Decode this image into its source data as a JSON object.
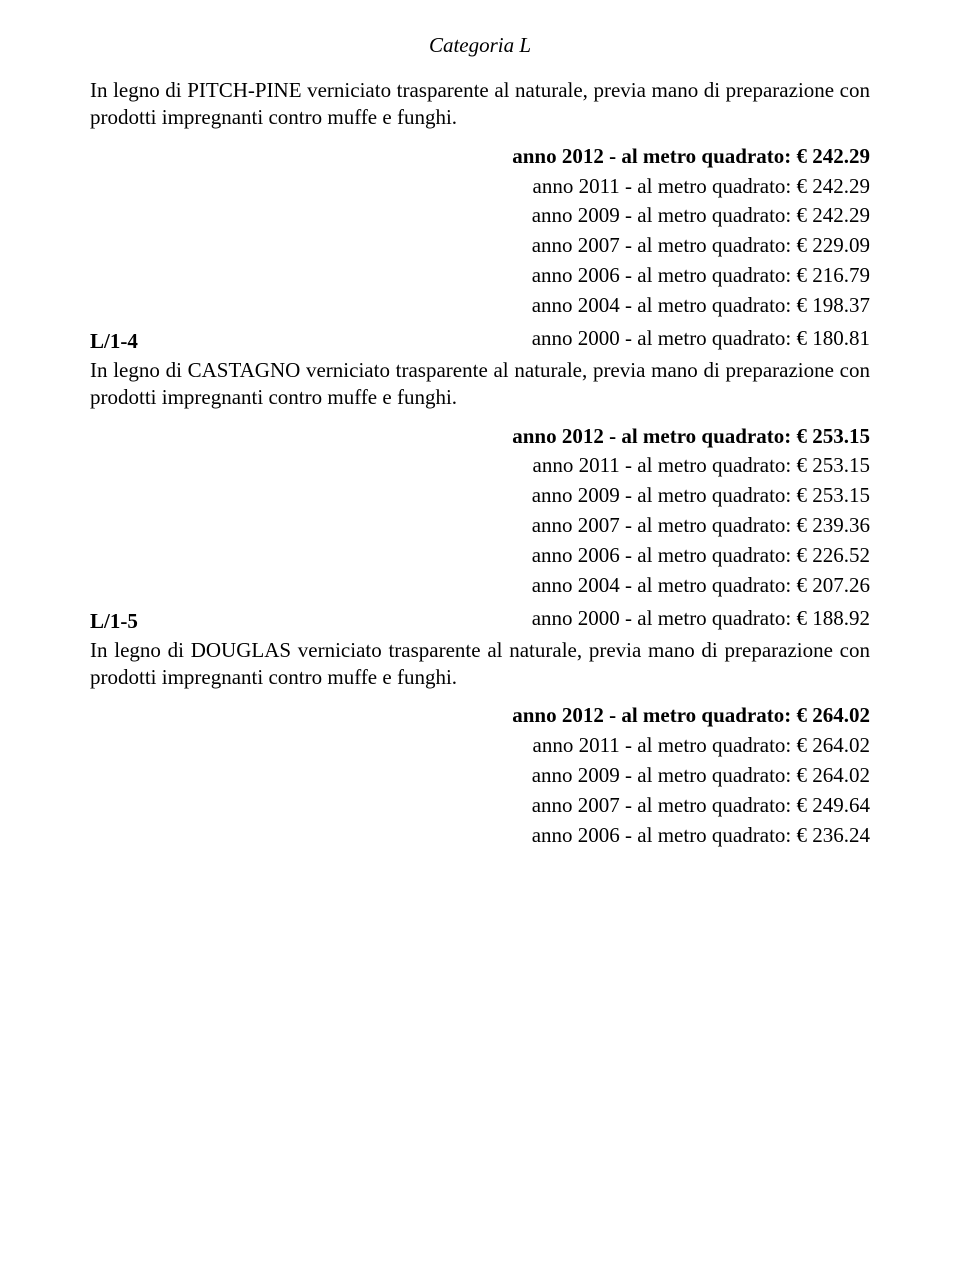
{
  "category_heading": "Categoria L",
  "section1": {
    "intro": "In legno di PITCH-PINE verniciato trasparente al naturale, previa mano di preparazione con prodotti impregnanti contro muffe e funghi.",
    "prices": [
      {
        "text": "anno 2012 - al metro quadrato: € 242.29",
        "bold": true
      },
      {
        "text": "anno 2011 - al metro quadrato: € 242.29",
        "bold": false
      },
      {
        "text": "anno 2009 - al metro quadrato: € 242.29",
        "bold": false
      },
      {
        "text": "anno 2007 - al metro quadrato: € 229.09",
        "bold": false
      },
      {
        "text": "anno 2006 - al metro quadrato: € 216.79",
        "bold": false
      },
      {
        "text": "anno 2004 - al metro quadrato: € 198.37",
        "bold": false
      }
    ],
    "last_price": "anno 2000 - al metro quadrato: € 180.81",
    "next_code": "L/1-4"
  },
  "section2": {
    "intro": "In legno di CASTAGNO verniciato trasparente al naturale, previa mano di preparazione con prodotti impregnanti contro muffe e funghi.",
    "prices": [
      {
        "text": "anno 2012 - al metro quadrato: € 253.15",
        "bold": true
      },
      {
        "text": "anno 2011 - al metro quadrato: € 253.15",
        "bold": false
      },
      {
        "text": "anno 2009 - al metro quadrato: € 253.15",
        "bold": false
      },
      {
        "text": "anno 2007 - al metro quadrato: € 239.36",
        "bold": false
      },
      {
        "text": "anno 2006 - al metro quadrato: € 226.52",
        "bold": false
      },
      {
        "text": "anno 2004 - al metro quadrato: € 207.26",
        "bold": false
      }
    ],
    "last_price": "anno 2000 - al metro quadrato: € 188.92",
    "next_code": "L/1-5"
  },
  "section3": {
    "intro": "In legno di DOUGLAS verniciato trasparente al naturale, previa mano di preparazione con prodotti impregnanti contro muffe e funghi.",
    "prices": [
      {
        "text": "anno 2012 - al metro quadrato: € 264.02",
        "bold": true
      },
      {
        "text": "anno 2011 - al metro quadrato: € 264.02",
        "bold": false
      },
      {
        "text": "anno 2009 - al metro quadrato: € 264.02",
        "bold": false
      },
      {
        "text": "anno 2007 - al metro quadrato: € 249.64",
        "bold": false
      },
      {
        "text": "anno 2006 - al metro quadrato: € 236.24",
        "bold": false
      }
    ]
  }
}
